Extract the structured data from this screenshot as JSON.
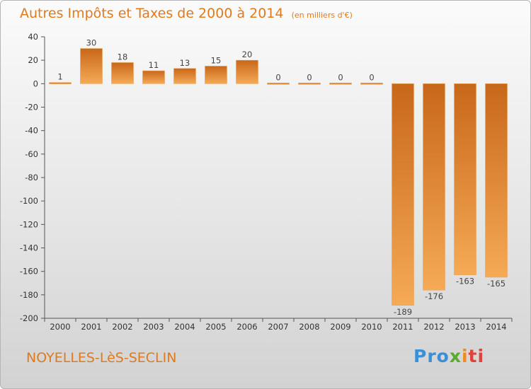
{
  "title": "Autres Impôts et Taxes de 2000 à 2014",
  "unit": "(en milliers d'€)",
  "city": "NOYELLES-LèS-SECLIN",
  "logo": [
    "Pro",
    "x",
    "i",
    "ti"
  ],
  "colors": {
    "accent": "#e07a1e",
    "bar_top": "#c8671a",
    "bar_bottom": "#f5aa55"
  },
  "chart_data": {
    "type": "bar",
    "categories": [
      "2000",
      "2001",
      "2002",
      "2003",
      "2004",
      "2005",
      "2006",
      "2007",
      "2008",
      "2009",
      "2010",
      "2011",
      "2012",
      "2013",
      "2014"
    ],
    "values": [
      1,
      30,
      18,
      11,
      13,
      15,
      20,
      0,
      0,
      0,
      0,
      -189,
      -176,
      -163,
      -165
    ],
    "value_labels": [
      "1",
      "30",
      "18",
      "11",
      "13",
      "15",
      "20",
      "0",
      "0",
      "0",
      "0",
      "-189",
      "-176",
      "-163",
      "-165"
    ],
    "ylim": [
      -200,
      40
    ],
    "yticks": [
      40,
      20,
      0,
      -20,
      -40,
      -60,
      -80,
      -100,
      -120,
      -140,
      -160,
      -180,
      -200
    ],
    "ytick_labels": [
      "40",
      "20",
      "0",
      "-20",
      "-40",
      "-60",
      "-80",
      "-100",
      "-120",
      "-140",
      "-160",
      "-180",
      "-200"
    ],
    "grid": false,
    "xlabel": "",
    "ylabel": ""
  }
}
